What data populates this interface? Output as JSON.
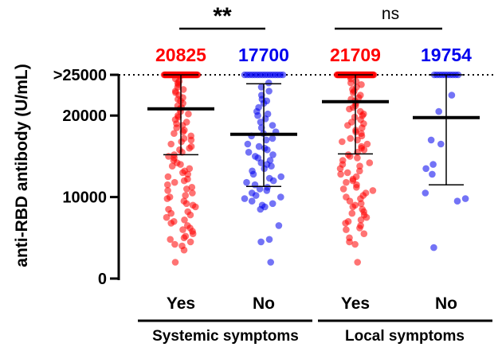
{
  "chart_data": {
    "type": "scatter",
    "ylabel": "anti-RBD antibody (U/mL)",
    "ylim": [
      0,
      25000
    ],
    "y_ticks": [
      {
        "value": 0,
        "label": "0"
      },
      {
        "value": 10000,
        "label": "10000"
      },
      {
        "value": 20000,
        "label": "20000"
      },
      {
        "value": 25000,
        "label": ">25000"
      }
    ],
    "ceiling_line": {
      "value": 25000,
      "style": "dotted"
    },
    "groups": [
      {
        "name": "Systemic symptoms",
        "categories": [
          "Yes",
          "No"
        ]
      },
      {
        "name": "Local symptoms",
        "categories": [
          "Yes",
          "No"
        ]
      }
    ],
    "series": [
      {
        "group": "Systemic symptoms",
        "category": "Yes",
        "color": "#ff0000",
        "mean": 20825,
        "mean_label": "20825",
        "sd_upper": 25000,
        "sd_lower": 15200,
        "values": [
          25000,
          25000,
          25000,
          25000,
          25000,
          25000,
          25000,
          25000,
          25000,
          25000,
          25000,
          25000,
          25000,
          25000,
          25000,
          25000,
          25000,
          25000,
          25000,
          25000,
          25000,
          25000,
          25000,
          25000,
          25000,
          25000,
          25000,
          25000,
          25000,
          25000,
          25000,
          25000,
          25000,
          25000,
          25000,
          25000,
          25000,
          25000,
          25000,
          25000,
          25000,
          25000,
          25000,
          25000,
          25000,
          25000,
          25000,
          25000,
          25000,
          25000,
          25000,
          25000,
          25000,
          25000,
          25000,
          25000,
          25000,
          25000,
          25000,
          25000,
          24800,
          24500,
          24200,
          24000,
          23800,
          23500,
          23200,
          23000,
          22800,
          22500,
          22200,
          22000,
          21800,
          21500,
          21200,
          21000,
          20800,
          20500,
          20200,
          20000,
          19800,
          19500,
          19200,
          19000,
          18800,
          18500,
          18200,
          18000,
          17800,
          17500,
          17200,
          17000,
          16800,
          16500,
          16200,
          16000,
          15800,
          15500,
          15200,
          15000,
          14800,
          14500,
          14200,
          14000,
          13800,
          13500,
          13200,
          13000,
          12800,
          12500,
          12200,
          12000,
          11800,
          11500,
          11200,
          11000,
          10800,
          10500,
          10200,
          10000,
          9800,
          9500,
          9200,
          9000,
          8800,
          8500,
          8200,
          8000,
          7800,
          7500,
          7200,
          7000,
          6800,
          6500,
          6200,
          6000,
          5800,
          5500,
          5200,
          5000,
          4800,
          4500,
          4200,
          4000,
          3500,
          2000
        ]
      },
      {
        "group": "Systemic symptoms",
        "category": "No",
        "color": "#0000ee",
        "mean": 17700,
        "mean_label": "17700",
        "sd_upper": 23900,
        "sd_lower": 11300,
        "values": [
          25000,
          25000,
          25000,
          25000,
          25000,
          25000,
          25000,
          25000,
          25000,
          25000,
          25000,
          25000,
          25000,
          25000,
          25000,
          25000,
          24000,
          23500,
          23000,
          22500,
          22000,
          21800,
          21500,
          21000,
          20500,
          20200,
          20000,
          19600,
          19200,
          18800,
          18500,
          18000,
          17800,
          17500,
          17200,
          17000,
          16500,
          16200,
          16000,
          15800,
          15500,
          15200,
          15000,
          14800,
          14500,
          14200,
          14000,
          13800,
          13500,
          13200,
          12800,
          12500,
          12300,
          12000,
          11800,
          11500,
          11200,
          11000,
          10800,
          10500,
          10200,
          10000,
          9800,
          9500,
          9200,
          9000,
          8800,
          8500,
          6500,
          4800,
          4500,
          2000
        ]
      },
      {
        "group": "Local symptoms",
        "category": "Yes",
        "color": "#ff0000",
        "mean": 21709,
        "mean_label": "21709",
        "sd_upper": 25000,
        "sd_lower": 15300,
        "values": [
          25000,
          25000,
          25000,
          25000,
          25000,
          25000,
          25000,
          25000,
          25000,
          25000,
          25000,
          25000,
          25000,
          25000,
          25000,
          25000,
          25000,
          25000,
          25000,
          25000,
          25000,
          25000,
          25000,
          25000,
          25000,
          25000,
          25000,
          25000,
          25000,
          25000,
          25000,
          25000,
          25000,
          25000,
          25000,
          25000,
          25000,
          25000,
          25000,
          25000,
          25000,
          25000,
          25000,
          25000,
          25000,
          25000,
          25000,
          25000,
          25000,
          25000,
          25000,
          25000,
          25000,
          25000,
          25000,
          25000,
          25000,
          25000,
          25000,
          25000,
          25000,
          25000,
          25000,
          25000,
          25000,
          25000,
          25000,
          25000,
          25000,
          25000,
          24800,
          24500,
          24200,
          24000,
          23800,
          23500,
          23200,
          23000,
          22800,
          22500,
          22200,
          22000,
          21800,
          21500,
          21200,
          21000,
          20800,
          20500,
          20200,
          20000,
          19800,
          19500,
          19200,
          19000,
          18800,
          18500,
          18200,
          18000,
          17800,
          17500,
          17200,
          17000,
          16800,
          16500,
          16200,
          16000,
          15800,
          15500,
          15200,
          15000,
          14800,
          14500,
          14200,
          14000,
          13800,
          13500,
          13200,
          13000,
          12800,
          12500,
          12200,
          12000,
          11800,
          11500,
          11200,
          11000,
          10800,
          10500,
          10200,
          10000,
          9800,
          9500,
          9200,
          9000,
          8800,
          8500,
          8200,
          8000,
          7800,
          7500,
          7200,
          7000,
          6800,
          6500,
          6200,
          6000,
          5500,
          5000,
          4500,
          4200,
          2000
        ]
      },
      {
        "group": "Local symptoms",
        "category": "No",
        "color": "#0000ee",
        "mean": 19754,
        "mean_label": "19754",
        "sd_upper": 25000,
        "sd_lower": 11500,
        "values": [
          25000,
          25000,
          25000,
          25000,
          25000,
          25000,
          25000,
          25000,
          25000,
          25000,
          22500,
          20500,
          17000,
          16500,
          14000,
          13500,
          12800,
          10500,
          9800,
          9500,
          3800
        ]
      }
    ],
    "significance": [
      {
        "between": "Systemic symptoms",
        "label": "**"
      },
      {
        "between": "Local symptoms",
        "label": "ns"
      }
    ]
  }
}
